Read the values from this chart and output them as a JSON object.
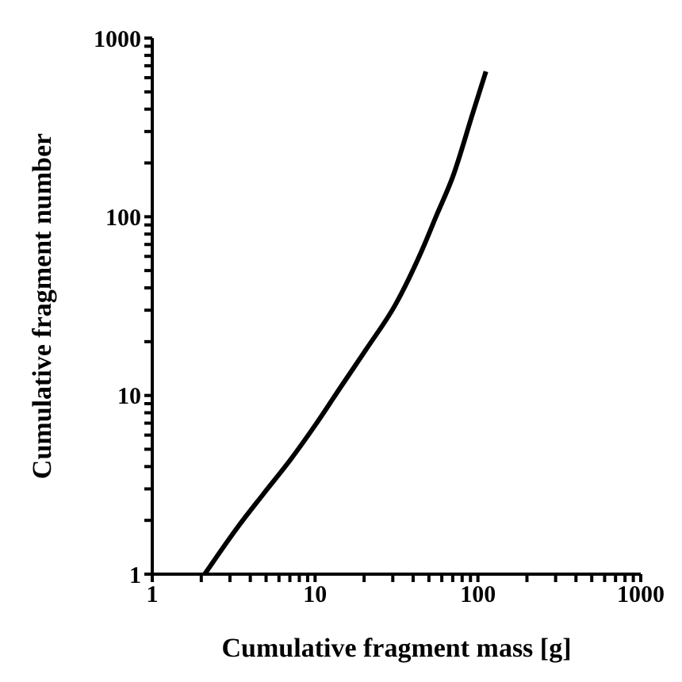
{
  "chart_data": {
    "type": "line",
    "xlabel": "Cumulative fragment mass [g]",
    "ylabel": "Cumulative fragment number",
    "log": "xy",
    "xlim": [
      1,
      1000
    ],
    "ylim": [
      1,
      1000
    ],
    "xticks": [
      1,
      {
        "value": 2,
        "label": null
      },
      {
        "value": 3,
        "label": null
      },
      {
        "value": 4,
        "label": null
      },
      {
        "value": 5,
        "label": null
      },
      {
        "value": 6,
        "label": null
      },
      {
        "value": 7,
        "label": null
      },
      {
        "value": 8,
        "label": null
      },
      {
        "value": 9,
        "label": null
      },
      10,
      {
        "value": 20,
        "label": null
      },
      {
        "value": 30,
        "label": null
      },
      {
        "value": 40,
        "label": null
      },
      {
        "value": 50,
        "label": null
      },
      {
        "value": 60,
        "label": null
      },
      {
        "value": 70,
        "label": null
      },
      {
        "value": 80,
        "label": null
      },
      {
        "value": 90,
        "label": null
      },
      100,
      {
        "value": 200,
        "label": null
      },
      {
        "value": 300,
        "label": null
      },
      {
        "value": 400,
        "label": null
      },
      {
        "value": 500,
        "label": null
      },
      {
        "value": 600,
        "label": null
      },
      {
        "value": 700,
        "label": null
      },
      {
        "value": 800,
        "label": null
      },
      {
        "value": 900,
        "label": null
      },
      1000
    ],
    "yticks": [
      1,
      {
        "value": 2,
        "label": null
      },
      {
        "value": 3,
        "label": null
      },
      {
        "value": 4,
        "label": null
      },
      {
        "value": 5,
        "label": null
      },
      {
        "value": 6,
        "label": null
      },
      {
        "value": 7,
        "label": null
      },
      {
        "value": 8,
        "label": null
      },
      {
        "value": 9,
        "label": null
      },
      10,
      {
        "value": 20,
        "label": null
      },
      {
        "value": 30,
        "label": null
      },
      {
        "value": 40,
        "label": null
      },
      {
        "value": 50,
        "label": null
      },
      {
        "value": 60,
        "label": null
      },
      {
        "value": 70,
        "label": null
      },
      {
        "value": 80,
        "label": null
      },
      {
        "value": 90,
        "label": null
      },
      100,
      {
        "value": 200,
        "label": null
      },
      {
        "value": 300,
        "label": null
      },
      {
        "value": 400,
        "label": null
      },
      {
        "value": 500,
        "label": null
      },
      {
        "value": 600,
        "label": null
      },
      {
        "value": 700,
        "label": null
      },
      {
        "value": 800,
        "label": null
      },
      {
        "value": 900,
        "label": null
      },
      1000
    ],
    "marker": "none",
    "line_style": "solid",
    "series": [
      {
        "color": "#000000",
        "x": [
          2.1,
          3.3,
          4.8,
          7.1,
          10,
          14.7,
          21,
          31,
          45,
          56,
          70,
          93,
          112
        ],
        "values": [
          1,
          1.8,
          2.8,
          4.4,
          6.8,
          11.5,
          18.6,
          32,
          64,
          103,
          167,
          380,
          650
        ]
      }
    ]
  }
}
